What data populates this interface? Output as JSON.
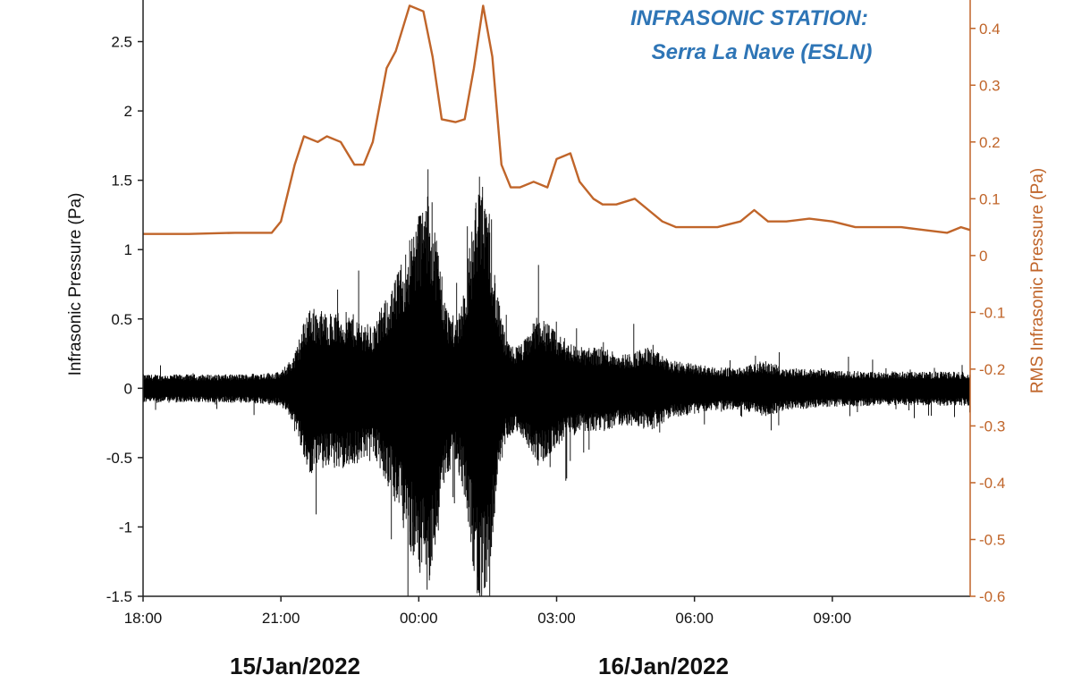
{
  "chart_data": {
    "type": "line",
    "title": [
      "INFRASONIC STATION:",
      "Serra La Nave (ESLN)"
    ],
    "ylabel": "Infrasonic Pressure (Pa)",
    "ylabel_right": "RMS Infrasonic Pressure (Pa)",
    "ylim": [
      -1.5,
      2.8
    ],
    "ylim_right": [
      -0.6,
      0.45
    ],
    "xlim_hours": [
      0,
      18
    ],
    "x_ticks": [
      "18:00",
      "21:00",
      "00:00",
      "03:00",
      "06:00",
      "09:00"
    ],
    "y_ticks": [
      -1.5,
      -1,
      -0.5,
      0,
      0.5,
      1,
      1.5,
      2,
      2.5
    ],
    "y_ticks_right": [
      -0.6,
      -0.5,
      -0.4,
      -0.3,
      -0.2,
      -0.1,
      0,
      0.1,
      0.2,
      0.3,
      0.4
    ],
    "date_labels": [
      "15/Jan/2022",
      "16/Jan/2022"
    ],
    "colors": {
      "waveform": "#000000",
      "rms": "#c0652a",
      "title": "#2e75b6",
      "right_axis": "#c0652a"
    },
    "series": [
      {
        "axis": "left",
        "style": "waveform",
        "envelope": {
          "x": [
            0,
            1,
            2,
            3,
            3.3,
            3.6,
            4,
            4.5,
            5,
            5.5,
            6,
            6.2,
            6.4,
            6.6,
            6.8,
            7,
            7.3,
            7.5,
            7.7,
            7.9,
            8.1,
            8.3,
            8.6,
            9,
            9.5,
            10,
            10.5,
            11,
            11.5,
            12,
            12.5,
            13,
            13.5,
            14,
            15,
            16,
            17,
            18
          ],
          "peak": [
            0.1,
            0.1,
            0.1,
            0.12,
            0.25,
            0.6,
            0.55,
            0.55,
            0.45,
            0.8,
            1.3,
            1.4,
            1.1,
            0.6,
            0.5,
            0.75,
            1.55,
            1.4,
            0.7,
            0.35,
            0.3,
            0.35,
            0.55,
            0.4,
            0.3,
            0.3,
            0.25,
            0.3,
            0.2,
            0.18,
            0.15,
            0.15,
            0.2,
            0.15,
            0.13,
            0.12,
            0.12,
            0.12
          ]
        }
      },
      {
        "axis": "right",
        "name": "RMS",
        "x": [
          0,
          1,
          2,
          2.8,
          3.0,
          3.3,
          3.5,
          3.8,
          4.0,
          4.3,
          4.6,
          4.8,
          5.0,
          5.3,
          5.5,
          5.8,
          6.1,
          6.3,
          6.5,
          6.8,
          7.0,
          7.2,
          7.4,
          7.6,
          7.8,
          8.0,
          8.2,
          8.5,
          8.8,
          9.0,
          9.3,
          9.5,
          9.8,
          10.0,
          10.3,
          10.7,
          11.0,
          11.3,
          11.6,
          12.0,
          12.5,
          13.0,
          13.3,
          13.6,
          14.0,
          14.5,
          15.0,
          15.5,
          16.0,
          16.5,
          17.0,
          17.5,
          17.8,
          18
        ],
        "values": [
          0.038,
          0.038,
          0.04,
          0.04,
          0.06,
          0.16,
          0.21,
          0.2,
          0.21,
          0.2,
          0.16,
          0.16,
          0.2,
          0.33,
          0.36,
          0.44,
          0.43,
          0.35,
          0.24,
          0.235,
          0.24,
          0.33,
          0.44,
          0.35,
          0.16,
          0.12,
          0.12,
          0.13,
          0.12,
          0.17,
          0.18,
          0.13,
          0.1,
          0.09,
          0.09,
          0.1,
          0.08,
          0.06,
          0.05,
          0.05,
          0.05,
          0.06,
          0.08,
          0.06,
          0.06,
          0.065,
          0.06,
          0.05,
          0.05,
          0.05,
          0.045,
          0.04,
          0.05,
          0.045
        ]
      }
    ]
  }
}
